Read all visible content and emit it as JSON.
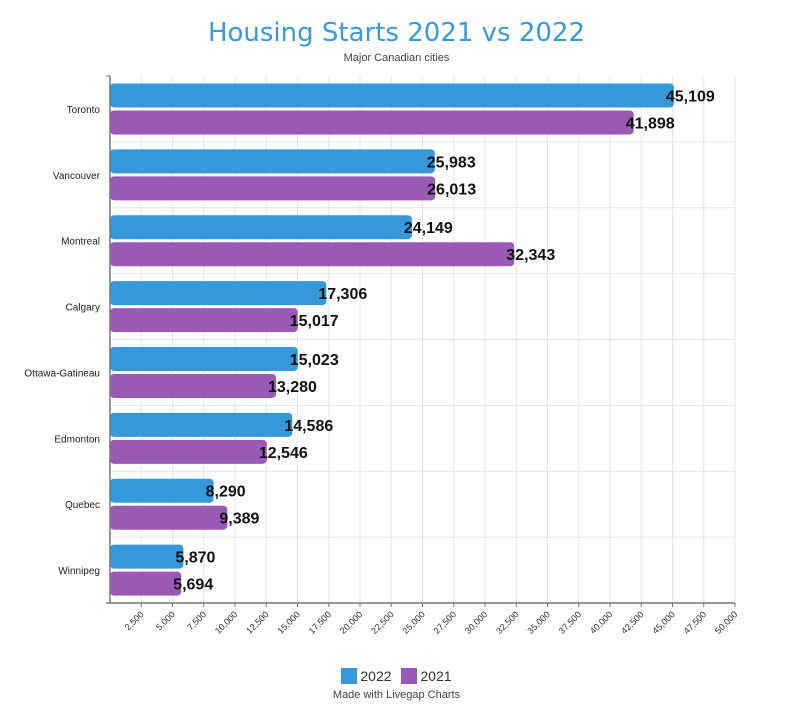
{
  "chart_data": {
    "type": "bar",
    "orientation": "horizontal",
    "title": "Housing Starts 2021 vs 2022",
    "subtitle": "Major Canadian cities",
    "categories": [
      "Toronto",
      "Vancouver",
      "Montreal",
      "Calgary",
      "Ottawa-Gatineau",
      "Edmonton",
      "Quebec",
      "Winnipeg"
    ],
    "series": [
      {
        "name": "2022",
        "color": "#3498db",
        "values": [
          45109,
          25983,
          24149,
          17306,
          15023,
          14586,
          8290,
          5870
        ],
        "labels": [
          "45,109",
          "25,983",
          "24,149",
          "17,306",
          "15,023",
          "14,586",
          "8,290",
          "5,870"
        ]
      },
      {
        "name": "2021",
        "color": "#9b59b6",
        "values": [
          41898,
          26013,
          32343,
          15017,
          13280,
          12546,
          9389,
          5694
        ],
        "labels": [
          "41,898",
          "26,013",
          "32,343",
          "15,017",
          "13,280",
          "12,546",
          "9,389",
          "5,694"
        ]
      }
    ],
    "xlim": [
      0,
      50000
    ],
    "xticks": [
      "2,500",
      "5,000",
      "7,500",
      "10,000",
      "12,500",
      "15,000",
      "17,500",
      "20,000",
      "22,500",
      "25,000",
      "27,500",
      "30,000",
      "32,500",
      "35,000",
      "37,500",
      "40,000",
      "42,500",
      "45,000",
      "47,500",
      "50,000"
    ],
    "xtick_values": [
      2500,
      5000,
      7500,
      10000,
      12500,
      15000,
      17500,
      20000,
      22500,
      25000,
      27500,
      30000,
      32500,
      35000,
      37500,
      40000,
      42500,
      45000,
      47500,
      50000
    ],
    "grid": true,
    "legend": "bottom"
  },
  "credit": "Made with Livegap Charts"
}
